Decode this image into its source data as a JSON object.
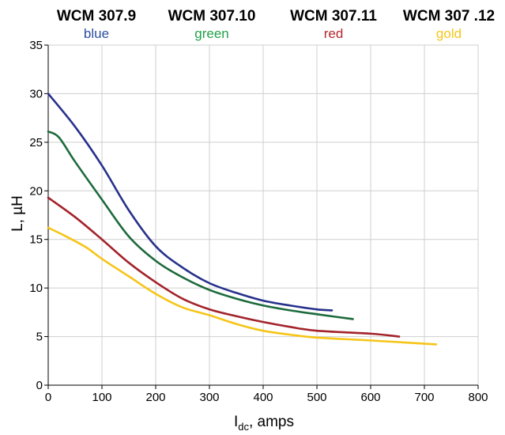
{
  "chart_data": {
    "type": "line",
    "xlabel_main": "I",
    "xlabel_sub": "dc",
    "xlabel_rest": ", amps",
    "ylabel": "L, µH",
    "xlim": [
      0,
      800
    ],
    "ylim": [
      0,
      35
    ],
    "xticks": [
      0,
      100,
      200,
      300,
      400,
      500,
      600,
      700,
      800
    ],
    "yticks": [
      0,
      5,
      10,
      15,
      20,
      25,
      30,
      35
    ],
    "grid": true,
    "legend_position": "top",
    "series": [
      {
        "name": "WCM 307.9",
        "color_name": "blue",
        "color": "#27318b",
        "label_color": "#2b4ea0",
        "points": [
          [
            0,
            30.0
          ],
          [
            50,
            26.6
          ],
          [
            100,
            22.6
          ],
          [
            150,
            18.0
          ],
          [
            200,
            14.3
          ],
          [
            250,
            12.1
          ],
          [
            300,
            10.5
          ],
          [
            350,
            9.5
          ],
          [
            400,
            8.7
          ],
          [
            450,
            8.2
          ],
          [
            500,
            7.8
          ],
          [
            528,
            7.7
          ]
        ]
      },
      {
        "name": "WCM 307.10",
        "color_name": "green",
        "color": "#1d6a3c",
        "label_color": "#22a04a",
        "points": [
          [
            0,
            26.1
          ],
          [
            20,
            25.5
          ],
          [
            50,
            23.0
          ],
          [
            100,
            19.1
          ],
          [
            150,
            15.3
          ],
          [
            200,
            12.8
          ],
          [
            250,
            11.1
          ],
          [
            300,
            9.8
          ],
          [
            350,
            8.9
          ],
          [
            400,
            8.2
          ],
          [
            450,
            7.7
          ],
          [
            500,
            7.3
          ],
          [
            567,
            6.8
          ]
        ]
      },
      {
        "name": "WCM 307.11",
        "color_name": "red",
        "color": "#a3232b",
        "label_color": "#b5262e",
        "points": [
          [
            0,
            19.3
          ],
          [
            50,
            17.3
          ],
          [
            100,
            15.0
          ],
          [
            150,
            12.6
          ],
          [
            200,
            10.6
          ],
          [
            250,
            8.9
          ],
          [
            300,
            7.8
          ],
          [
            350,
            7.1
          ],
          [
            400,
            6.5
          ],
          [
            450,
            6.0
          ],
          [
            500,
            5.6
          ],
          [
            600,
            5.3
          ],
          [
            653,
            5.0
          ]
        ]
      },
      {
        "name": "WCM 307 .12",
        "color_name": "gold",
        "color": "#f5c518",
        "label_color": "#f5c518",
        "points": [
          [
            0,
            16.2
          ],
          [
            30,
            15.4
          ],
          [
            70,
            14.2
          ],
          [
            100,
            13.0
          ],
          [
            150,
            11.2
          ],
          [
            200,
            9.4
          ],
          [
            250,
            8.0
          ],
          [
            300,
            7.2
          ],
          [
            350,
            6.3
          ],
          [
            400,
            5.6
          ],
          [
            450,
            5.2
          ],
          [
            500,
            4.9
          ],
          [
            600,
            4.6
          ],
          [
            722,
            4.2
          ]
        ]
      }
    ]
  }
}
